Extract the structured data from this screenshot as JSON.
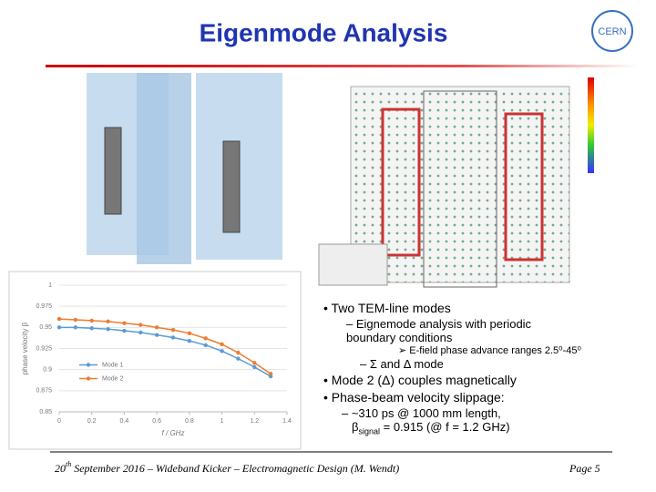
{
  "header": {
    "title": "Eigenmode Analysis",
    "logo": "CERN"
  },
  "chart_data": {
    "type": "line",
    "x": [
      0,
      0.1,
      0.2,
      0.3,
      0.4,
      0.5,
      0.6,
      0.7,
      0.8,
      0.9,
      1.0,
      1.1,
      1.2,
      1.3
    ],
    "series": [
      {
        "name": "Mode 1",
        "color": "#5b9bd5",
        "values": [
          0.95,
          0.95,
          0.949,
          0.948,
          0.946,
          0.944,
          0.941,
          0.938,
          0.934,
          0.929,
          0.922,
          0.913,
          0.903,
          0.892
        ]
      },
      {
        "name": "Mode 2",
        "color": "#ed7d31",
        "values": [
          0.96,
          0.959,
          0.958,
          0.957,
          0.955,
          0.953,
          0.95,
          0.947,
          0.943,
          0.937,
          0.93,
          0.92,
          0.908,
          0.895
        ]
      }
    ],
    "xlim": [
      0,
      1.4
    ],
    "xticks": [
      0,
      0.2,
      0.4,
      0.6,
      0.8,
      1,
      1.2,
      1.4
    ],
    "ylim": [
      0.85,
      1
    ],
    "yticks": [
      0.85,
      0.875,
      0.9,
      0.925,
      0.95,
      0.975,
      1
    ],
    "xlabel": "f / GHz",
    "ylabel": "phase velocity β",
    "grid": true,
    "legend": "left"
  },
  "bullets": {
    "b1": "Two TEM-line modes",
    "b1a": "Eignemode analysis with periodic boundary conditions",
    "b1a1": "E-field phase advance ranges 2.5⁰-45⁰",
    "b1b": "Σ and Δ mode",
    "b2": "Mode 2 (Δ) couples magnetically",
    "b3": "Phase-beam velocity slippage:",
    "b3a": "~310 ps @ 1000 mm length,",
    "b3a_beta": "β",
    "b3a_sub": "signal",
    "b3a_rest": "= 0.915 (@ f = 1.2 GHz)"
  },
  "footer": {
    "day": "20",
    "ordinal": "th",
    "text": "September 2016 – Wideband Kicker – Electromagnetic Design (M. Wendt)",
    "page": "Page 5"
  }
}
